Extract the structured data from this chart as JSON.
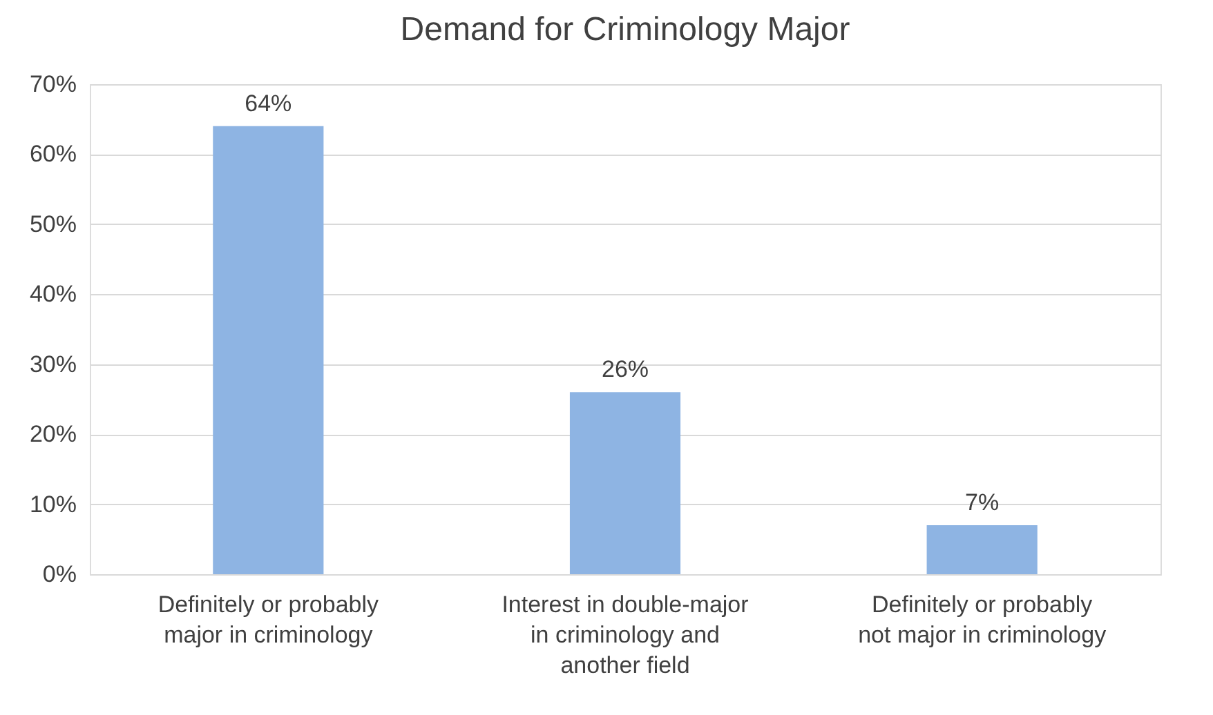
{
  "chart_data": {
    "type": "bar",
    "title": "Demand for Criminology Major",
    "categories": [
      "Definitely or probably major in criminology",
      "Interest in double-major in criminology and another field",
      "Definitely or probably not major in criminology"
    ],
    "values": [
      64,
      26,
      7
    ],
    "color": "#8eb4e3",
    "value_labels": [
      "64%",
      "26%",
      "7%"
    ],
    "ylim": [
      0,
      70
    ],
    "yticks": [
      {
        "value": 0,
        "label": "0%"
      },
      {
        "value": 10,
        "label": "10%"
      },
      {
        "value": 20,
        "label": "20%"
      },
      {
        "value": 30,
        "label": "30%"
      },
      {
        "value": 40,
        "label": "40%"
      },
      {
        "value": 50,
        "label": "50%"
      },
      {
        "value": 60,
        "label": "60%"
      },
      {
        "value": 70,
        "label": "70%"
      }
    ],
    "grid": "y"
  }
}
